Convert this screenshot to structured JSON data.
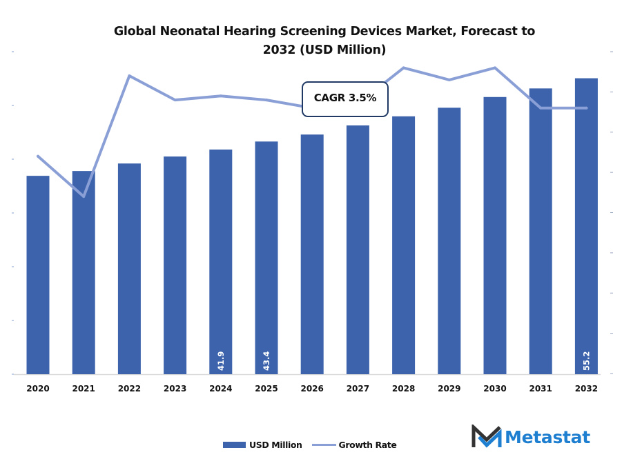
{
  "chart_data": {
    "type": "bar",
    "title": "Global Neonatal Hearing Screening Devices Market, Forecast to 2032 (USD Million)",
    "title_lines": [
      "Global Neonatal Hearing Screening Devices Market, Forecast to",
      "2032 (USD Million)"
    ],
    "xlabel": "",
    "ylabel": "",
    "categories": [
      "2020",
      "2021",
      "2022",
      "2023",
      "2024",
      "2025",
      "2026",
      "2027",
      "2028",
      "2029",
      "2030",
      "2031",
      "2032"
    ],
    "series": [
      {
        "name": "USD Million",
        "type": "bar",
        "axis": "left",
        "color": "#3c63ac",
        "values": [
          37.0,
          37.9,
          39.3,
          40.6,
          41.9,
          43.4,
          44.7,
          46.4,
          48.1,
          49.7,
          51.7,
          53.3,
          55.2
        ],
        "data_labels": {
          "4": "41.9",
          "5": "43.4",
          "12": "55.2"
        }
      },
      {
        "name": "Growth Rate",
        "type": "line",
        "axis": "right",
        "color": "#8a9fd6",
        "values": [
          5.4,
          4.4,
          7.4,
          6.8,
          6.9,
          6.8,
          6.6,
          6.7,
          7.6,
          7.3,
          7.6,
          6.6,
          6.6
        ],
        "note": "relative values read on unlabeled right axis (tick units)"
      }
    ],
    "ylim": [
      0,
      60
    ],
    "y2lim": [
      0,
      8
    ],
    "grid": false,
    "legend_position": "bottom",
    "annotation": "CAGR 3.5%"
  },
  "legend": {
    "bar_label": "USD Million",
    "line_label": "Growth Rate"
  },
  "logo": {
    "text": "Metastat"
  },
  "colors": {
    "bar": "#3c63ac",
    "line": "#8a9fd6",
    "logo_blue": "#1e7fd0",
    "logo_dark": "#333333"
  }
}
